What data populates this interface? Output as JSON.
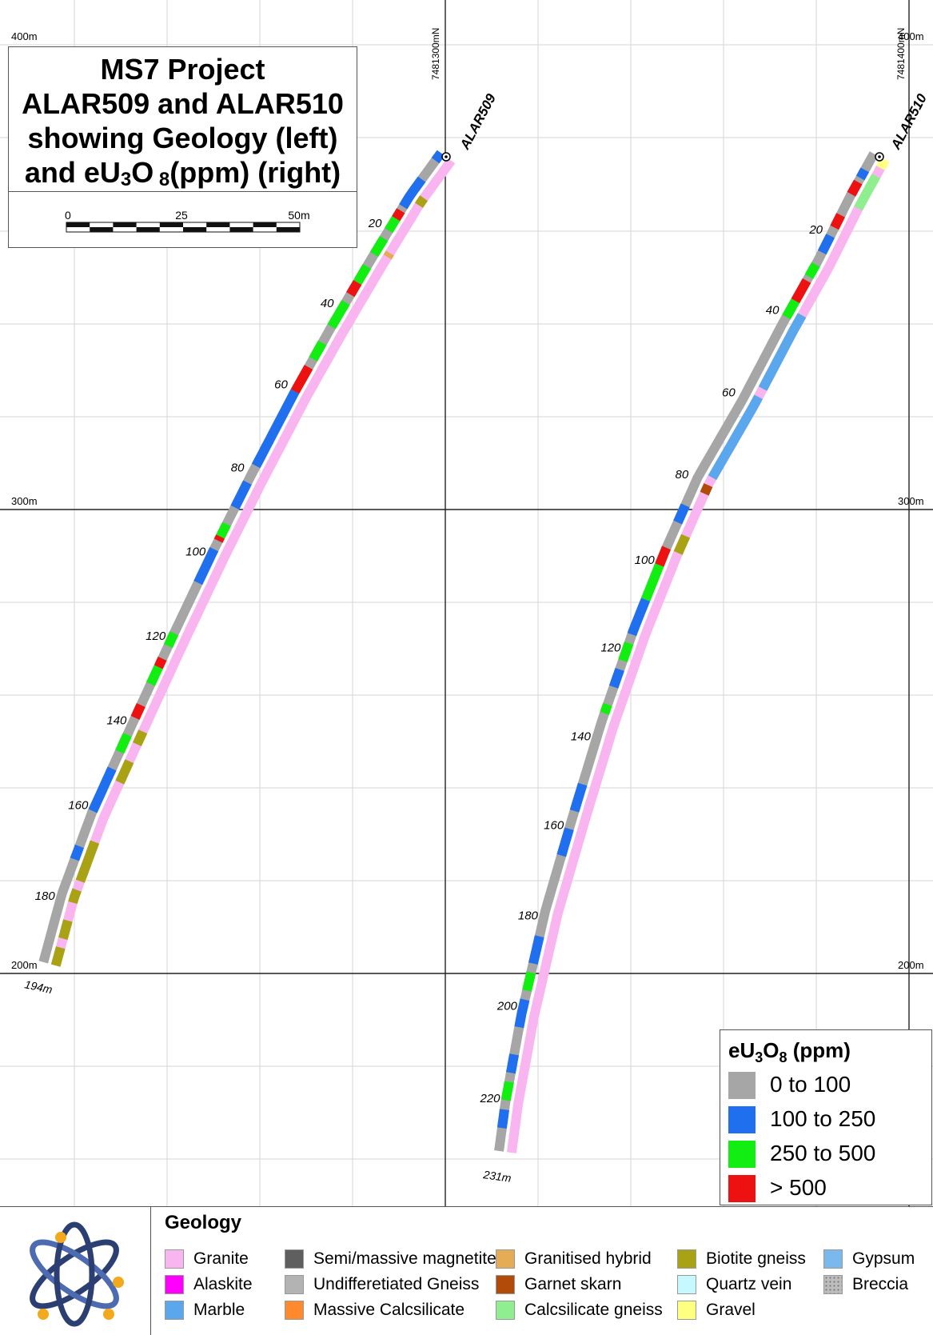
{
  "title": {
    "line1": "MS7  Project",
    "line2": "ALAR509 and ALAR510",
    "line3": "showing Geology (left)",
    "line4_pre": "and eU",
    "line4_sub1": "3",
    "line4_mid": "O",
    "line4_sub2": " 8",
    "line4_post": "(ppm) (right)"
  },
  "scale_bar": {
    "labels": [
      "0",
      "25",
      "50m"
    ]
  },
  "grid_labels": {
    "elev_top_left": "400m",
    "elev_top_right": "400m",
    "elev_mid_left": "300m",
    "elev_mid_right": "300m",
    "elev_bot_left": "200m",
    "elev_bot_right": "200m",
    "northing_1": "7481300mN",
    "northing_2": "7481400mN"
  },
  "holes": [
    {
      "name": "ALAR509",
      "end_depth": "194m",
      "depth_labels": [
        "20",
        "40",
        "60",
        "80",
        "100",
        "120",
        "140",
        "160",
        "180"
      ]
    },
    {
      "name": "ALAR510",
      "end_depth": "231m",
      "depth_labels": [
        "20",
        "40",
        "60",
        "80",
        "100",
        "120",
        "140",
        "160",
        "180",
        "200",
        "220"
      ]
    }
  ],
  "eu_legend": {
    "title_pre": "eU",
    "title_sub1": "3",
    "title_mid": "O",
    "title_sub2": "8",
    "title_post": " (ppm)",
    "items": [
      {
        "label": "0 to 100",
        "color": "#a6a6a6"
      },
      {
        "label": "100 to 250",
        "color": "#1f6fef"
      },
      {
        "label": "250 to 500",
        "color": "#12ee12"
      },
      {
        "label": "> 500",
        "color": "#ee1111"
      }
    ]
  },
  "geology_legend": {
    "title": "Geology",
    "items": [
      {
        "label": "Granite",
        "color": "#f9b5ef"
      },
      {
        "label": "Alaskite",
        "color": "#ff00ff"
      },
      {
        "label": "Marble",
        "color": "#5aa7ee"
      },
      {
        "label": "Semi/massive magnetite",
        "color": "#5f5f5f"
      },
      {
        "label": "Undifferetiated Gneiss",
        "color": "#b3b3b3"
      },
      {
        "label": "Massive Calcsilicate",
        "color": "#ff8a2e"
      },
      {
        "label": "Granitised hybrid",
        "color": "#e6ac55"
      },
      {
        "label": "Garnet skarn",
        "color": "#b24a0a"
      },
      {
        "label": "Calcsilicate gneiss",
        "color": "#8fee8f"
      },
      {
        "label": "Biotite gneiss",
        "color": "#a8a214"
      },
      {
        "label": "Quartz vein",
        "color": "#c5f8ff"
      },
      {
        "label": "Gravel",
        "color": "#ffff80"
      },
      {
        "label": "Gypsum",
        "color": "#7ab9ee"
      },
      {
        "label": "Breccia",
        "color": "#bdbdbd"
      }
    ]
  },
  "colors": {
    "granite": "#f9b5ef",
    "gneiss": "#b3b3b3",
    "marble": "#5aa7ee",
    "biotite": "#a8a214",
    "skarn": "#b24a0a",
    "calcsil": "#8fee8f",
    "gravel": "#ffff80",
    "hybrid": "#e6ac55",
    "eu_low": "#a6a6a6",
    "eu_mid": "#1f6fef",
    "eu_high": "#12ee12",
    "eu_vhigh": "#ee1111"
  }
}
